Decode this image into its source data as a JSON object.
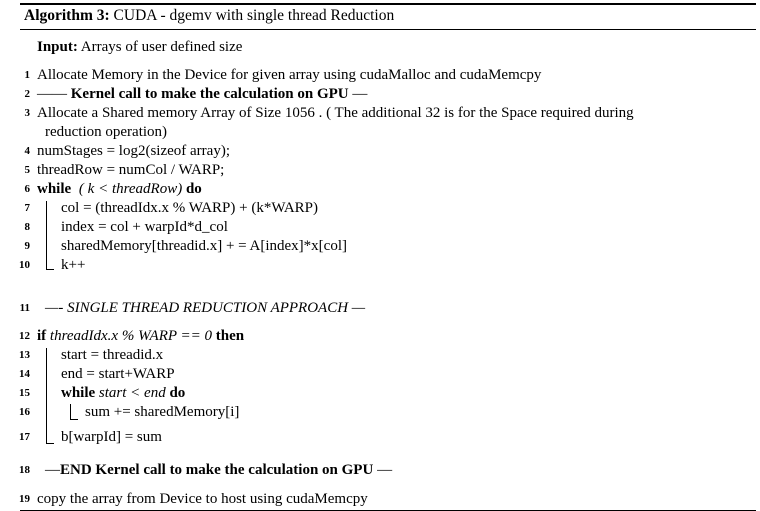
{
  "caption": {
    "label": "Algorithm 3:",
    "title": "CUDA - dgemv with single thread Reduction"
  },
  "input": {
    "label": "Input:",
    "text": "Arrays of user defined size"
  },
  "lines": [
    {
      "num": "1",
      "text": "Allocate Memory in the Device for given array using cudaMalloc and cudaMemcpy"
    },
    {
      "num": "2",
      "pre": "—— ",
      "bold": "Kernel call to make the calculation on GPU",
      "post": " —"
    },
    {
      "num": "3",
      "text": "Allocate a Shared memory Array of Size 1056 . ( The additional 32 is for the Space required during",
      "cont": "reduction operation)"
    },
    {
      "num": "4",
      "text": "numStages = log2(sizeof array);"
    },
    {
      "num": "5",
      "text": "threadRow = numCol / WARP;"
    },
    {
      "num": "6",
      "kw": "while",
      "cond": "( k < threadRow)",
      "kw2": "do"
    },
    {
      "num": "7",
      "text": "col = (threadIdx.x % WARP) + (k*WARP)"
    },
    {
      "num": "8",
      "text": "index = col + warpId*d_col"
    },
    {
      "num": "9",
      "text": "sharedMemory[threadid.x] + = A[index]*x[col]"
    },
    {
      "num": "10",
      "text": "k++"
    },
    {
      "num": "11",
      "text": "—- SINGLE THREAD REDUCTION APPROACH —"
    },
    {
      "num": "12",
      "kw": "if",
      "cond": "threadIdx.x % WARP == 0",
      "kw2": "then"
    },
    {
      "num": "13",
      "text": "start = threadid.x"
    },
    {
      "num": "14",
      "text": "end = start+WARP"
    },
    {
      "num": "15",
      "kw": "while",
      "cond": "start < end",
      "kw2": "do"
    },
    {
      "num": "16",
      "text": "sum += sharedMemory[i]"
    },
    {
      "num": "17",
      "text": "b[warpId] = sum"
    },
    {
      "num": "18",
      "pre": "—",
      "bold": "END Kernel call to make the calculation on GPU",
      "post": " —"
    },
    {
      "num": "19",
      "text": "copy the array from Device to host using cudaMemcpy"
    }
  ]
}
